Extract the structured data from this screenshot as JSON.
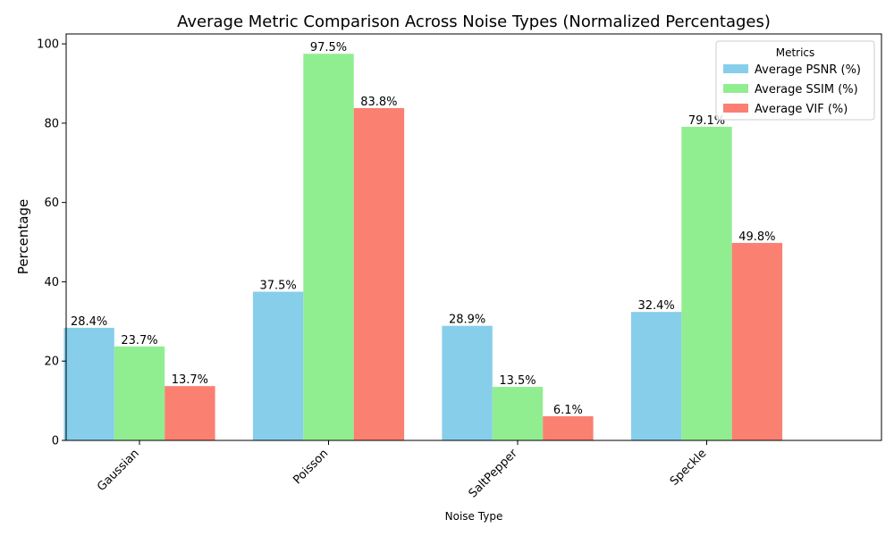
{
  "chart_data": {
    "type": "bar",
    "title": "Average Metric Comparison Across Noise Types (Normalized Percentages)",
    "xlabel": "Noise Type",
    "ylabel": "Percentage",
    "categories": [
      "Gaussian",
      "Poisson",
      "SaltPepper",
      "Speckle"
    ],
    "series": [
      {
        "name": "Average PSNR (%)",
        "color": "#87ceeb",
        "values": [
          28.4,
          37.5,
          28.9,
          32.4
        ]
      },
      {
        "name": "Average SSIM (%)",
        "color": "#90ee90",
        "values": [
          23.7,
          97.5,
          13.5,
          79.1
        ]
      },
      {
        "name": "Average VIF (%)",
        "color": "#fa8072",
        "values": [
          13.7,
          83.8,
          6.1,
          49.8
        ]
      }
    ],
    "value_label_suffix": "%",
    "ylim": [
      0,
      102.5
    ],
    "yticks": [
      0,
      20,
      40,
      60,
      80,
      100
    ],
    "grid": false,
    "legend": {
      "title": "Metrics",
      "placement": "top-right"
    },
    "xtick_rotation_deg": 45
  }
}
